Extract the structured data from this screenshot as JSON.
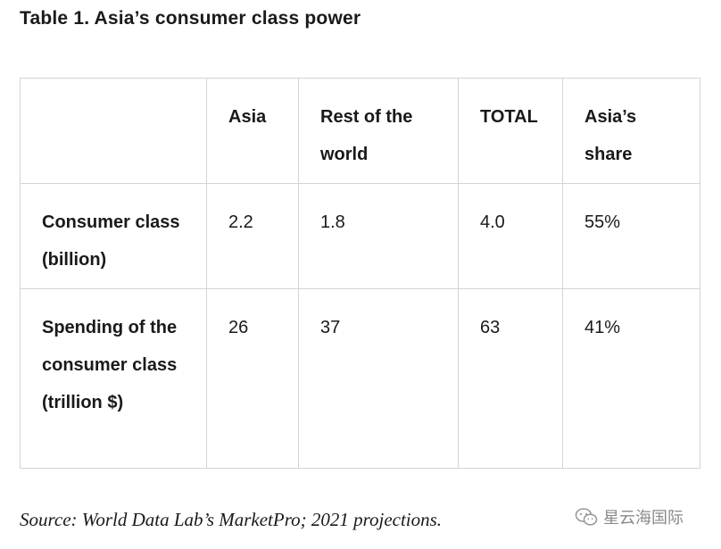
{
  "title": "Table 1. Asia’s consumer class power",
  "table": {
    "headers": [
      "",
      "Asia",
      "Rest of the world",
      "TOTAL",
      "Asia’s share"
    ],
    "rows": [
      {
        "label": "Consumer class (billion)",
        "cells": [
          "2.2",
          "1.8",
          "4.0",
          "55%"
        ]
      },
      {
        "label": "Spending of the consumer class (trillion $)",
        "cells": [
          "26",
          "37",
          "63",
          "41%"
        ]
      }
    ]
  },
  "source": "Source: World Data Lab’s MarketPro; 2021 projections.",
  "watermark": {
    "text": "星云海国际",
    "icon": "wechat-icon",
    "color": "#8a8a8a"
  }
}
